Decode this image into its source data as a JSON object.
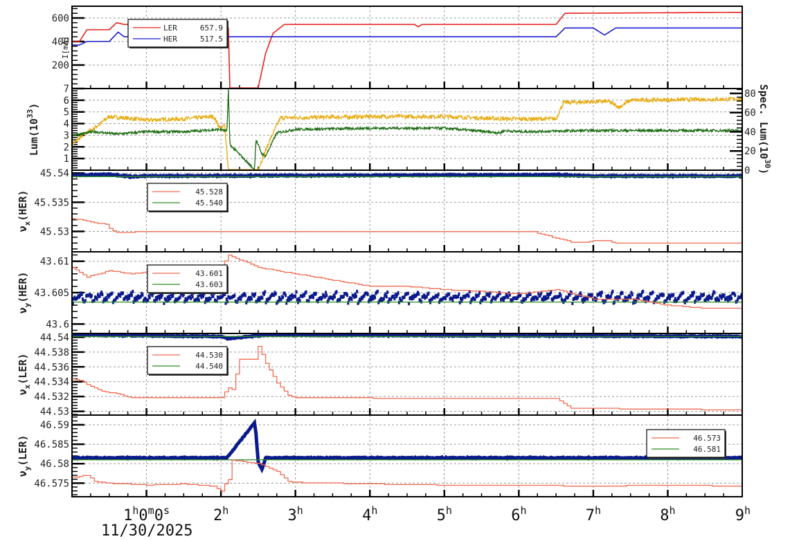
{
  "figure": {
    "x_axis": {
      "date_label": "11/30/2025",
      "tick_labels": [
        {
          "hour": 1,
          "main": "1",
          "suffix": "h0m0s"
        },
        {
          "hour": 2,
          "main": "2",
          "suffix": "h"
        },
        {
          "hour": 3,
          "main": "3",
          "suffix": "h"
        },
        {
          "hour": 4,
          "main": "4",
          "suffix": "h"
        },
        {
          "hour": 5,
          "main": "5",
          "suffix": "h"
        },
        {
          "hour": 6,
          "main": "6",
          "suffix": "h"
        },
        {
          "hour": 7,
          "main": "7",
          "suffix": "h"
        },
        {
          "hour": 8,
          "main": "8",
          "suffix": "h"
        },
        {
          "hour": 9,
          "main": "9",
          "suffix": "h"
        }
      ]
    },
    "colors": {
      "ler_current": "#e8201c",
      "her_current": "#1a1ad0",
      "lum_yellow": "#e8aa10",
      "lum_green": "#1a6a10",
      "tune_measured": "#0a1a8a",
      "tune_ler_set": "#f06a50",
      "tune_her_set": "#2a8a20",
      "grid": "#999999"
    }
  },
  "chart_data": [
    {
      "type": "line",
      "panel": "current",
      "ylabel": "I[mA]",
      "yticks": [
        200,
        400,
        600
      ],
      "ylim": [
        0,
        700
      ],
      "xlim_hours": [
        0,
        9
      ],
      "legend": [
        {
          "name": "LER",
          "value": "657.9",
          "color": "#e8201c"
        },
        {
          "name": "HER",
          "value": "517.5",
          "color": "#1a1ad0"
        }
      ],
      "series": [
        {
          "name": "LER",
          "x": [
            0,
            0.1,
            0.2,
            0.5,
            0.6,
            0.7,
            2.0,
            2.05,
            2.08,
            2.1,
            2.12,
            2.13,
            2.5,
            2.6,
            2.7,
            2.85,
            4.6,
            4.65,
            4.7,
            6.5,
            6.62,
            9.0
          ],
          "y": [
            400,
            400,
            500,
            500,
            560,
            545,
            545,
            450,
            395,
            520,
            5,
            5,
            5,
            300,
            470,
            545,
            545,
            525,
            545,
            545,
            640,
            648
          ]
        },
        {
          "name": "HER",
          "x": [
            0,
            0.1,
            0.2,
            0.5,
            0.62,
            0.7,
            6.5,
            6.62,
            7.0,
            7.15,
            7.3,
            9.0
          ],
          "y": [
            370,
            370,
            400,
            400,
            480,
            440,
            440,
            515,
            515,
            455,
            515,
            515
          ]
        }
      ]
    },
    {
      "type": "line",
      "panel": "luminosity",
      "ylabel": "Lum(10^33)",
      "ylabel_right": "Spec. Lum(10^30)",
      "yticks": [
        1,
        2,
        3,
        4,
        5,
        6,
        7
      ],
      "yticks_right": [
        0,
        20,
        40,
        60,
        80
      ],
      "ylim": [
        0,
        7
      ],
      "series": [
        {
          "name": "Luminosity",
          "x": [
            0,
            0.15,
            0.3,
            0.5,
            1.0,
            1.5,
            1.9,
            2.0,
            2.05,
            2.1,
            2.12,
            2.5,
            2.65,
            2.8,
            3.0,
            4.0,
            5.0,
            5.8,
            6.0,
            6.5,
            6.6,
            7.2,
            7.35,
            7.5,
            9.0
          ],
          "y": [
            2.2,
            3.0,
            3.6,
            4.6,
            4.3,
            4.4,
            4.6,
            3.5,
            3.9,
            0.05,
            0.05,
            0.05,
            2.5,
            4.5,
            4.5,
            4.6,
            4.6,
            4.4,
            4.4,
            4.4,
            5.8,
            5.9,
            5.4,
            6.0,
            6.1
          ]
        },
        {
          "name": "Specific luminosity",
          "x": [
            0,
            0.3,
            0.6,
            1.0,
            1.5,
            2.0,
            2.08,
            2.1,
            2.12,
            2.45,
            2.47,
            2.55,
            2.6,
            2.75,
            3.0,
            4.0,
            5.0,
            5.75,
            5.8,
            6.0,
            7.0,
            8.0,
            9.0
          ],
          "y": [
            3.0,
            3.3,
            3.1,
            3.3,
            3.3,
            3.5,
            3.3,
            6.9,
            2.2,
            0.05,
            2.6,
            1.4,
            1.2,
            3.2,
            3.5,
            3.6,
            3.6,
            3.2,
            3.4,
            3.3,
            3.4,
            3.4,
            3.4
          ]
        }
      ]
    },
    {
      "type": "line",
      "panel": "nu_x_HER",
      "ylabel": "νx(HER)",
      "yticks": [
        45.53,
        45.535,
        45.54
      ],
      "ylim": [
        45.5265,
        45.5405
      ],
      "legend": [
        {
          "value": "45.528",
          "color": "#f06a50"
        },
        {
          "value": "45.540",
          "color": "#2a8a20"
        }
      ],
      "series": [
        {
          "name": "measured",
          "style": "thick",
          "x": [
            0,
            0.5,
            0.8,
            1.0,
            6.5,
            7.0,
            9.0
          ],
          "y": [
            45.5396,
            45.5398,
            45.5394,
            45.5395,
            45.5397,
            45.5395,
            45.5395
          ]
        },
        {
          "name": "set-HER",
          "x": [
            0,
            9
          ],
          "y": [
            45.5394,
            45.5394
          ]
        },
        {
          "name": "LER-ref",
          "x": [
            0,
            0.2,
            0.3,
            0.45,
            0.5,
            0.6,
            0.85,
            1.0,
            3.0,
            4.0,
            6.2,
            6.7,
            6.9,
            7.0,
            7.2,
            7.3,
            9.0
          ],
          "y": [
            45.5322,
            45.5318,
            45.5315,
            45.5312,
            45.5305,
            45.5298,
            45.5299,
            45.5299,
            45.53,
            45.5299,
            45.5299,
            45.5282,
            45.5281,
            45.5284,
            45.5284,
            45.528,
            45.528
          ]
        }
      ]
    },
    {
      "type": "line",
      "panel": "nu_y_HER",
      "ylabel": "νy(HER)",
      "yticks": [
        43.6,
        43.605,
        43.61
      ],
      "ylim": [
        43.5985,
        43.6115
      ],
      "legend": [
        {
          "value": "43.601",
          "color": "#f06a50"
        },
        {
          "value": "43.603",
          "color": "#2a8a20"
        }
      ],
      "series": [
        {
          "name": "measured",
          "style": "scatter-band",
          "center": 43.6043,
          "spread": 0.0012
        },
        {
          "name": "set",
          "x": [
            0,
            9
          ],
          "y": [
            43.6035,
            43.6035
          ]
        },
        {
          "name": "step",
          "x": [
            0,
            0.2,
            0.5,
            0.8,
            1.1,
            1.5,
            2.0,
            2.1,
            2.5,
            3.0,
            3.5,
            4.0,
            4.5,
            5.0,
            5.5,
            6.0,
            6.5,
            7.0,
            7.5,
            8.0,
            8.5,
            9.0
          ],
          "y": [
            43.609,
            43.6075,
            43.6085,
            43.608,
            43.6085,
            43.608,
            43.609,
            43.611,
            43.609,
            43.608,
            43.607,
            43.606,
            43.606,
            43.6055,
            43.6052,
            43.6048,
            43.6055,
            43.604,
            43.604,
            43.603,
            43.6025,
            43.6025
          ]
        }
      ]
    },
    {
      "type": "line",
      "panel": "nu_x_LER",
      "ylabel": "νx(LER)",
      "yticks": [
        44.53,
        44.532,
        44.534,
        44.536,
        44.538,
        44.54
      ],
      "ylim": [
        44.5295,
        44.5405
      ],
      "legend": [
        {
          "value": "44.530",
          "color": "#f06a50"
        },
        {
          "value": "44.540",
          "color": "#2a8a20"
        }
      ],
      "series": [
        {
          "name": "measured",
          "style": "thick",
          "x": [
            0,
            2.0,
            2.1,
            2.5,
            2.6,
            9.0
          ],
          "y": [
            44.5403,
            44.5401,
            44.5398,
            44.5402,
            44.5403,
            44.5401
          ]
        },
        {
          "name": "set",
          "x": [
            0,
            9
          ],
          "y": [
            44.5401,
            44.5401
          ]
        },
        {
          "name": "step",
          "x": [
            0,
            0.1,
            0.2,
            0.4,
            0.6,
            0.8,
            1.0,
            1.5,
            2.0,
            2.05,
            2.1,
            2.15,
            2.25,
            2.45,
            2.5,
            2.6,
            2.75,
            2.9,
            3.0,
            4.0,
            5.0,
            6.0,
            6.5,
            6.7,
            7.0,
            8.0,
            9.0
          ],
          "y": [
            44.5344,
            44.5342,
            44.5336,
            44.5327,
            44.5324,
            44.5318,
            44.5318,
            44.5318,
            44.5318,
            44.5326,
            44.5332,
            44.533,
            44.537,
            44.537,
            44.5388,
            44.5365,
            44.5338,
            44.5322,
            44.5318,
            44.5318,
            44.5317,
            44.5317,
            44.5317,
            44.5304,
            44.5304,
            44.5303,
            44.5302
          ]
        }
      ]
    },
    {
      "type": "line",
      "panel": "nu_y_LER",
      "ylabel": "νy(LER)",
      "yticks": [
        46.575,
        46.58,
        46.585,
        46.59
      ],
      "ylim": [
        46.5715,
        46.5925
      ],
      "legend": [
        {
          "value": "46.573",
          "color": "#f06a50"
        },
        {
          "value": "46.581",
          "color": "#2a8a20"
        }
      ],
      "series": [
        {
          "name": "measured",
          "style": "thick",
          "x": [
            0,
            2.08,
            2.45,
            2.47,
            2.5,
            2.55,
            2.6,
            9.0
          ],
          "y": [
            46.5815,
            46.5815,
            46.5905,
            46.588,
            46.5805,
            46.5785,
            46.5815,
            46.5815
          ]
        },
        {
          "name": "set",
          "x": [
            0,
            9
          ],
          "y": [
            46.581,
            46.581
          ]
        },
        {
          "name": "step",
          "x": [
            0,
            0.2,
            0.3,
            0.5,
            1.0,
            1.5,
            1.9,
            1.95,
            2.0,
            2.05,
            2.1,
            2.12,
            2.5,
            2.6,
            2.75,
            2.9,
            3.0,
            4.0,
            5.0,
            6.0,
            7.0,
            8.0,
            9.0
          ],
          "y": [
            46.5765,
            46.577,
            46.5755,
            46.575,
            46.5745,
            46.5748,
            46.5742,
            46.5735,
            46.573,
            46.5748,
            46.576,
            46.581,
            46.58,
            46.5793,
            46.578,
            46.5755,
            46.5752,
            46.5748,
            46.5745,
            46.5745,
            46.5742,
            46.5745,
            46.5742
          ]
        }
      ]
    }
  ]
}
